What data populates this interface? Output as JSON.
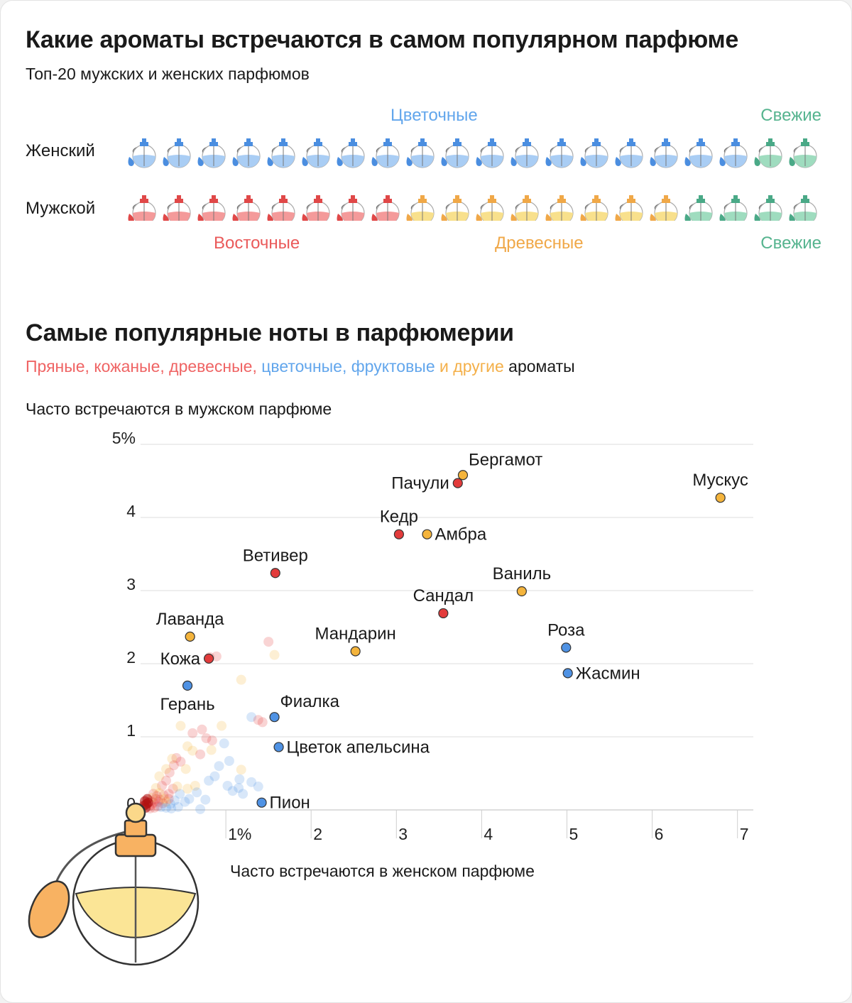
{
  "section1": {
    "title": "Какие ароматы встречаются в самом популярном парфюме",
    "subtitle": "Топ-20 мужских и женских парфюмов",
    "rows": [
      {
        "label": "Женский",
        "bottles": [
          "floral",
          "floral",
          "floral",
          "floral",
          "floral",
          "floral",
          "floral",
          "floral",
          "floral",
          "floral",
          "floral",
          "floral",
          "floral",
          "floral",
          "floral",
          "floral",
          "floral",
          "floral",
          "fresh",
          "fresh"
        ]
      },
      {
        "label": "Мужской",
        "bottles": [
          "oriental",
          "oriental",
          "oriental",
          "oriental",
          "oriental",
          "oriental",
          "oriental",
          "oriental",
          "woody",
          "woody",
          "woody",
          "woody",
          "woody",
          "woody",
          "woody",
          "woody",
          "fresh",
          "fresh",
          "fresh",
          "fresh"
        ]
      }
    ],
    "group_labels": {
      "floral": "Цветочные",
      "fresh_top": "Свежие",
      "oriental": "Восточные",
      "woody": "Древесные",
      "fresh_bottom": "Свежие"
    },
    "palette": {
      "floral": {
        "fill": "#a9cdf4",
        "cap": "#4b8ee0",
        "line": "#3f86d8"
      },
      "fresh": {
        "fill": "#9fdcbf",
        "cap": "#4aa987",
        "line": "#3d9a78"
      },
      "oriental": {
        "fill": "#f49a9a",
        "cap": "#e04848",
        "line": "#d23a3a"
      },
      "woody": {
        "fill": "#f8e08c",
        "cap": "#f0a848",
        "line": "#e8a23c"
      }
    }
  },
  "section2": {
    "title": "Самые популярные ноты в парфюмерии",
    "legend": [
      {
        "text": "Пряные, кожаные, древесные,",
        "color": "#ef6464"
      },
      {
        "text": "цветочные, фруктовые",
        "color": "#62a6ec"
      },
      {
        "text": "и другие",
        "color": "#f4b04a"
      },
      {
        "text": "ароматы",
        "color": "#1a1a1a"
      }
    ],
    "y_caption": "Часто встречаются в мужском парфюме"
  },
  "chart_data": {
    "type": "scatter",
    "title": "Самые популярные ноты в парфюмерии",
    "xlabel": "Часто встречаются в женском парфюме",
    "ylabel": "Часто встречаются в мужском парфюме",
    "xlim": [
      0,
      7.1
    ],
    "ylim": [
      0,
      5
    ],
    "x_ticks": [
      {
        "v": 1,
        "label": "1%"
      },
      {
        "v": 2,
        "label": "2"
      },
      {
        "v": 3,
        "label": "3"
      },
      {
        "v": 4,
        "label": "4"
      },
      {
        "v": 5,
        "label": "5"
      },
      {
        "v": 6,
        "label": "6"
      },
      {
        "v": 7,
        "label": "7"
      }
    ],
    "y_ticks": [
      {
        "v": 0,
        "label": "0"
      },
      {
        "v": 1,
        "label": "1"
      },
      {
        "v": 2,
        "label": "2"
      },
      {
        "v": 3,
        "label": "3"
      },
      {
        "v": 4,
        "label": "4"
      },
      {
        "v": 5,
        "label": "5%"
      }
    ],
    "category_colors": {
      "spicy": "#e23b3b",
      "floral": "#4f92e4",
      "other": "#f4b43c"
    },
    "labeled_points": [
      {
        "name": "Мускус",
        "x": 6.8,
        "y": 4.27,
        "cat": "other",
        "label_pos": "above"
      },
      {
        "name": "Бергамот",
        "x": 3.78,
        "y": 4.58,
        "cat": "other",
        "label_pos": "above-right"
      },
      {
        "name": "Пачули",
        "x": 3.72,
        "y": 4.47,
        "cat": "spicy",
        "label_pos": "left"
      },
      {
        "name": "Кедр",
        "x": 3.03,
        "y": 3.77,
        "cat": "spicy",
        "label_pos": "above"
      },
      {
        "name": "Амбра",
        "x": 3.36,
        "y": 3.77,
        "cat": "other",
        "label_pos": "right"
      },
      {
        "name": "Ветивер",
        "x": 1.58,
        "y": 3.24,
        "cat": "spicy",
        "label_pos": "above"
      },
      {
        "name": "Ваниль",
        "x": 4.47,
        "y": 2.99,
        "cat": "other",
        "label_pos": "above"
      },
      {
        "name": "Сандал",
        "x": 3.55,
        "y": 2.69,
        "cat": "spicy",
        "label_pos": "above"
      },
      {
        "name": "Роза",
        "x": 4.99,
        "y": 2.22,
        "cat": "floral",
        "label_pos": "above"
      },
      {
        "name": "Лаванда",
        "x": 0.58,
        "y": 2.37,
        "cat": "other",
        "label_pos": "above"
      },
      {
        "name": "Мандарин",
        "x": 2.52,
        "y": 2.17,
        "cat": "other",
        "label_pos": "above"
      },
      {
        "name": "Кожа",
        "x": 0.8,
        "y": 2.07,
        "cat": "spicy",
        "label_pos": "left"
      },
      {
        "name": "Жасмин",
        "x": 5.01,
        "y": 1.87,
        "cat": "floral",
        "label_pos": "right"
      },
      {
        "name": "Герань",
        "x": 0.55,
        "y": 1.7,
        "cat": "floral",
        "label_pos": "below"
      },
      {
        "name": "Фиалка",
        "x": 1.57,
        "y": 1.27,
        "cat": "floral",
        "label_pos": "above-right"
      },
      {
        "name": "Цветок апельсина",
        "x": 1.62,
        "y": 0.86,
        "cat": "floral",
        "label_pos": "right"
      },
      {
        "name": "Пион",
        "x": 1.42,
        "y": 0.1,
        "cat": "floral",
        "label_pos": "right"
      }
    ],
    "faint_points": [
      [
        1.5,
        2.3,
        "spicy"
      ],
      [
        1.57,
        2.12,
        "other"
      ],
      [
        0.89,
        2.1,
        "spicy"
      ],
      [
        0.81,
        2.09,
        "spicy"
      ],
      [
        1.18,
        1.78,
        "other"
      ],
      [
        1.3,
        1.27,
        "floral"
      ],
      [
        1.38,
        1.23,
        "spicy"
      ],
      [
        1.43,
        1.2,
        "spicy"
      ],
      [
        0.72,
        1.1,
        "spicy"
      ],
      [
        0.61,
        1.05,
        "spicy"
      ],
      [
        0.47,
        1.15,
        "other"
      ],
      [
        0.95,
        1.15,
        "other"
      ],
      [
        0.77,
        0.98,
        "spicy"
      ],
      [
        0.84,
        0.95,
        "spicy"
      ],
      [
        0.98,
        0.91,
        "floral"
      ],
      [
        0.55,
        0.87,
        "other"
      ],
      [
        0.61,
        0.81,
        "other"
      ],
      [
        0.7,
        0.76,
        "spicy"
      ],
      [
        0.83,
        0.82,
        "other"
      ],
      [
        0.42,
        0.71,
        "spicy"
      ],
      [
        0.47,
        0.66,
        "spicy"
      ],
      [
        0.37,
        0.7,
        "other"
      ],
      [
        0.53,
        0.56,
        "other"
      ],
      [
        0.39,
        0.61,
        "spicy"
      ],
      [
        0.34,
        0.51,
        "spicy"
      ],
      [
        0.3,
        0.56,
        "other"
      ],
      [
        1.04,
        0.67,
        "floral"
      ],
      [
        1.18,
        0.55,
        "other"
      ],
      [
        1.16,
        0.42,
        "floral"
      ],
      [
        1.3,
        0.38,
        "floral"
      ],
      [
        1.38,
        0.32,
        "floral"
      ],
      [
        1.02,
        0.33,
        "floral"
      ],
      [
        1.15,
        0.3,
        "floral"
      ],
      [
        1.08,
        0.26,
        "floral"
      ],
      [
        1.2,
        0.22,
        "floral"
      ],
      [
        0.64,
        0.33,
        "other"
      ],
      [
        0.66,
        0.24,
        "floral"
      ],
      [
        0.57,
        0.15,
        "floral"
      ],
      [
        0.55,
        0.29,
        "other"
      ],
      [
        0.22,
        0.46,
        "other"
      ],
      [
        0.3,
        0.4,
        "spicy"
      ],
      [
        0.25,
        0.33,
        "spicy"
      ],
      [
        0.18,
        0.3,
        "other"
      ],
      [
        0.38,
        0.29,
        "spicy"
      ],
      [
        0.46,
        0.22,
        "floral"
      ],
      [
        0.52,
        0.11,
        "floral"
      ],
      [
        0.43,
        0.32,
        "other"
      ],
      [
        0.33,
        0.22,
        "spicy"
      ],
      [
        0.27,
        0.2,
        "spicy"
      ],
      [
        0.22,
        0.23,
        "other"
      ],
      [
        0.15,
        0.22,
        "spicy"
      ],
      [
        0.4,
        0.13,
        "floral"
      ],
      [
        0.35,
        0.08,
        "floral"
      ],
      [
        0.3,
        0.11,
        "other"
      ],
      [
        0.26,
        0.09,
        "spicy"
      ],
      [
        0.21,
        0.11,
        "spicy"
      ],
      [
        0.18,
        0.15,
        "spicy"
      ],
      [
        0.15,
        0.1,
        "spicy"
      ],
      [
        0.13,
        0.07,
        "spicy"
      ],
      [
        0.2,
        0.05,
        "spicy"
      ],
      [
        0.24,
        0.04,
        "floral"
      ],
      [
        0.3,
        0.03,
        "floral"
      ],
      [
        0.36,
        0.02,
        "floral"
      ],
      [
        0.16,
        0.03,
        "spicy"
      ],
      [
        0.12,
        0.12,
        "spicy"
      ],
      [
        0.1,
        0.05,
        "spicy"
      ],
      [
        0.11,
        0.02,
        "spicy"
      ],
      [
        0.14,
        0.17,
        "other"
      ],
      [
        0.19,
        0.19,
        "spicy"
      ],
      [
        0.23,
        0.14,
        "spicy"
      ],
      [
        0.28,
        0.15,
        "other"
      ],
      [
        0.33,
        0.15,
        "spicy"
      ],
      [
        0.44,
        0.04,
        "floral"
      ],
      [
        0.7,
        0.01,
        "floral"
      ],
      [
        0.76,
        0.14,
        "floral"
      ],
      [
        0.8,
        0.4,
        "floral"
      ],
      [
        0.87,
        0.46,
        "floral"
      ],
      [
        0.92,
        0.6,
        "floral"
      ]
    ]
  }
}
